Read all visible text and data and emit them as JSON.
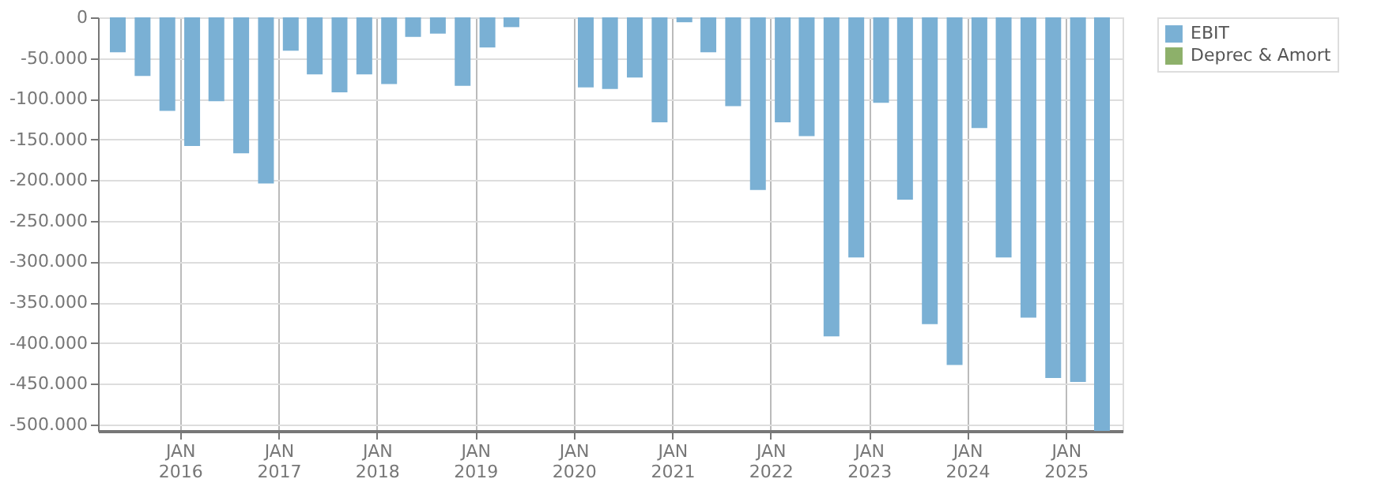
{
  "chart_data": {
    "type": "bar",
    "x": [
      "2015-05-15",
      "2015-08-15",
      "2015-11-15",
      "2016-02-15",
      "2016-05-15",
      "2016-08-15",
      "2016-11-15",
      "2017-02-15",
      "2017-05-15",
      "2017-08-15",
      "2017-11-15",
      "2018-02-15",
      "2018-05-15",
      "2018-08-15",
      "2018-11-15",
      "2019-02-15",
      "2019-05-15",
      "2019-08-15",
      "2019-11-15",
      "2020-02-15",
      "2020-05-15",
      "2020-08-15",
      "2020-11-15",
      "2021-02-15",
      "2021-05-15",
      "2021-08-15",
      "2021-11-15",
      "2022-02-15",
      "2022-05-15",
      "2022-08-15",
      "2022-11-15",
      "2023-02-15",
      "2023-05-15",
      "2023-08-15",
      "2023-11-15",
      "2024-02-15",
      "2024-05-15",
      "2024-08-15",
      "2024-11-15",
      "2025-02-15",
      "2025-05-15"
    ],
    "series": [
      {
        "name": "EBIT",
        "color": "#7ab0d4",
        "values": [
          -43000,
          -72000,
          -115000,
          -158000,
          -103000,
          -167000,
          -204000,
          -41000,
          -70000,
          -92000,
          -70000,
          -82000,
          -24000,
          -20000,
          -84000,
          -37000,
          -12000,
          null,
          null,
          -86000,
          -88000,
          -74000,
          -129000,
          -6000,
          -43000,
          -109000,
          -212000,
          -129000,
          -146000,
          -392000,
          -295000,
          -105000,
          -224000,
          -377000,
          -427000,
          -136000,
          -295000,
          -369000,
          -443000,
          -448000,
          -508000
        ]
      },
      {
        "name": "Deprec & Amort",
        "color": "#8db06a",
        "values": [
          null,
          null,
          null,
          null,
          null,
          null,
          null,
          null,
          null,
          null,
          null,
          null,
          null,
          null,
          null,
          null,
          null,
          null,
          null,
          null,
          null,
          null,
          null,
          null,
          null,
          null,
          null,
          null,
          null,
          null,
          null,
          null,
          null,
          null,
          null,
          null,
          null,
          null,
          null,
          null,
          null
        ]
      }
    ],
    "ylim": [
      -508000,
      0
    ],
    "yticks": [
      {
        "value": 0,
        "label": "0"
      },
      {
        "value": -50000,
        "label": "-50.000"
      },
      {
        "value": -100000,
        "label": "-100.000"
      },
      {
        "value": -150000,
        "label": "-150.000"
      },
      {
        "value": -200000,
        "label": "-200.000"
      },
      {
        "value": -250000,
        "label": "-250.000"
      },
      {
        "value": -300000,
        "label": "-300.000"
      },
      {
        "value": -350000,
        "label": "-350.000"
      },
      {
        "value": -400000,
        "label": "-400.000"
      },
      {
        "value": -450000,
        "label": "-450.000"
      },
      {
        "value": -500000,
        "label": "-500.000"
      }
    ],
    "xlim": [
      "2015-04-01",
      "2025-07-01"
    ],
    "xticks": [
      {
        "value": "2016-01-01",
        "label": "JAN\n2016"
      },
      {
        "value": "2017-01-01",
        "label": "JAN\n2017"
      },
      {
        "value": "2018-01-01",
        "label": "JAN\n2018"
      },
      {
        "value": "2019-01-01",
        "label": "JAN\n2019"
      },
      {
        "value": "2020-01-01",
        "label": "JAN\n2020"
      },
      {
        "value": "2021-01-01",
        "label": "JAN\n2021"
      },
      {
        "value": "2022-01-01",
        "label": "JAN\n2022"
      },
      {
        "value": "2023-01-01",
        "label": "JAN\n2023"
      },
      {
        "value": "2024-01-01",
        "label": "JAN\n2024"
      },
      {
        "value": "2025-01-01",
        "label": "JAN\n2025"
      }
    ],
    "grid": true,
    "legend": "top right"
  }
}
